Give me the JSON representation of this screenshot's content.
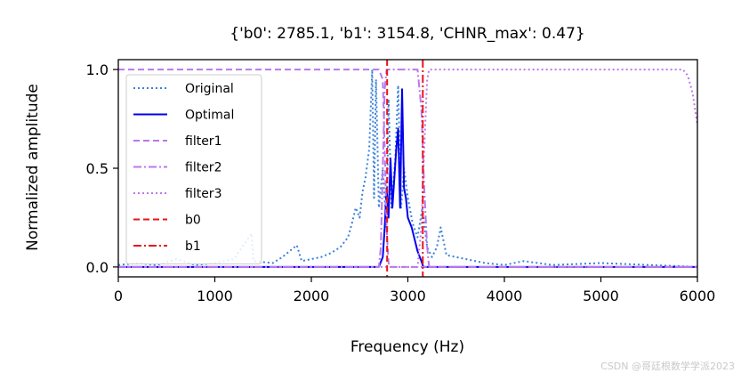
{
  "chart_data": {
    "type": "line",
    "title": "{'b0': 2785.1, 'b1': 3154.8, 'CHNR_max': 0.47}",
    "xlabel": "Frequency (Hz)",
    "ylabel": "Normalized amplitude",
    "xlim": [
      0,
      6000
    ],
    "ylim": [
      -0.05,
      1.05
    ],
    "x_ticks": [
      0,
      1000,
      2000,
      3000,
      4000,
      5000,
      6000
    ],
    "x_tick_labels": [
      "0",
      "1000",
      "2000",
      "3000",
      "4000",
      "5000",
      "6000"
    ],
    "y_ticks": [
      0.0,
      0.5,
      1.0
    ],
    "y_tick_labels": [
      "0.0",
      "0.5",
      "1.0"
    ],
    "grid": false,
    "legend_placement": "upper-left",
    "series": [
      {
        "name": "Original",
        "color": "#3b82d6",
        "dash": "dotted",
        "points": [
          [
            0,
            0.01
          ],
          [
            200,
            0.02
          ],
          [
            400,
            0.01
          ],
          [
            600,
            0.04
          ],
          [
            800,
            0.01
          ],
          [
            1000,
            0.02
          ],
          [
            1200,
            0.04
          ],
          [
            1380,
            0.17
          ],
          [
            1400,
            0.03
          ],
          [
            1600,
            0.02
          ],
          [
            1700,
            0.05
          ],
          [
            1850,
            0.11
          ],
          [
            1900,
            0.03
          ],
          [
            2000,
            0.04
          ],
          [
            2100,
            0.05
          ],
          [
            2200,
            0.07
          ],
          [
            2300,
            0.1
          ],
          [
            2380,
            0.15
          ],
          [
            2420,
            0.22
          ],
          [
            2460,
            0.3
          ],
          [
            2500,
            0.25
          ],
          [
            2530,
            0.38
          ],
          [
            2560,
            0.45
          ],
          [
            2600,
            0.6
          ],
          [
            2630,
            1.0
          ],
          [
            2650,
            0.35
          ],
          [
            2670,
            0.95
          ],
          [
            2700,
            0.3
          ],
          [
            2740,
            0.5
          ],
          [
            2780,
            0.2
          ],
          [
            2800,
            0.85
          ],
          [
            2830,
            0.3
          ],
          [
            2870,
            0.55
          ],
          [
            2900,
            0.92
          ],
          [
            2930,
            0.3
          ],
          [
            2960,
            0.5
          ],
          [
            3000,
            0.35
          ],
          [
            3050,
            0.22
          ],
          [
            3100,
            0.15
          ],
          [
            3150,
            0.3
          ],
          [
            3200,
            0.1
          ],
          [
            3250,
            0.05
          ],
          [
            3300,
            0.1
          ],
          [
            3340,
            0.2
          ],
          [
            3400,
            0.06
          ],
          [
            3600,
            0.04
          ],
          [
            3800,
            0.02
          ],
          [
            4000,
            0.01
          ],
          [
            4200,
            0.03
          ],
          [
            4500,
            0.01
          ],
          [
            5000,
            0.02
          ],
          [
            5500,
            0.01
          ],
          [
            6000,
            0.0
          ]
        ]
      },
      {
        "name": "Optimal",
        "color": "#0000ee",
        "dash": "solid",
        "points": [
          [
            0,
            0.0
          ],
          [
            2700,
            0.0
          ],
          [
            2740,
            0.05
          ],
          [
            2760,
            0.2
          ],
          [
            2780,
            0.4
          ],
          [
            2800,
            0.25
          ],
          [
            2820,
            0.55
          ],
          [
            2840,
            0.3
          ],
          [
            2860,
            0.45
          ],
          [
            2880,
            0.6
          ],
          [
            2900,
            0.7
          ],
          [
            2920,
            0.3
          ],
          [
            2940,
            0.9
          ],
          [
            2960,
            0.4
          ],
          [
            2980,
            0.35
          ],
          [
            3000,
            0.25
          ],
          [
            3040,
            0.2
          ],
          [
            3080,
            0.12
          ],
          [
            3100,
            0.08
          ],
          [
            3140,
            0.03
          ],
          [
            3160,
            0.0
          ],
          [
            6000,
            0.0
          ]
        ]
      },
      {
        "name": "filter1",
        "color": "#bb77ee",
        "dash": "dashed",
        "points": [
          [
            0,
            1.0
          ],
          [
            2700,
            1.0
          ],
          [
            2740,
            0.95
          ],
          [
            2760,
            0.6
          ],
          [
            2780,
            0.2
          ],
          [
            2800,
            0.02
          ],
          [
            2820,
            0.0
          ],
          [
            6000,
            0.0
          ]
        ]
      },
      {
        "name": "filter2",
        "color": "#bb77ee",
        "dash": "dashdot",
        "points": [
          [
            0,
            0.0
          ],
          [
            2700,
            0.0
          ],
          [
            2720,
            0.1
          ],
          [
            2740,
            0.5
          ],
          [
            2760,
            0.9
          ],
          [
            2780,
            1.0
          ],
          [
            3100,
            1.0
          ],
          [
            3140,
            0.8
          ],
          [
            3170,
            0.4
          ],
          [
            3200,
            0.1
          ],
          [
            3220,
            0.0
          ],
          [
            6000,
            0.0
          ]
        ]
      },
      {
        "name": "filter3",
        "color": "#bb77ee",
        "dash": "dotted",
        "points": [
          [
            0,
            0.0
          ],
          [
            3100,
            0.0
          ],
          [
            3140,
            0.2
          ],
          [
            3170,
            0.6
          ],
          [
            3200,
            0.95
          ],
          [
            3220,
            1.0
          ],
          [
            5850,
            1.0
          ],
          [
            5900,
            0.97
          ],
          [
            5950,
            0.88
          ],
          [
            6000,
            0.72
          ]
        ]
      }
    ],
    "vlines": [
      {
        "name": "b0",
        "x": 2785.1,
        "color": "#e8141a",
        "dash": "dashed"
      },
      {
        "name": "b1",
        "x": 3154.8,
        "color": "#e8141a",
        "dash": "dashdot"
      }
    ]
  },
  "watermark": "CSDN @哥廷根数学学派2023"
}
